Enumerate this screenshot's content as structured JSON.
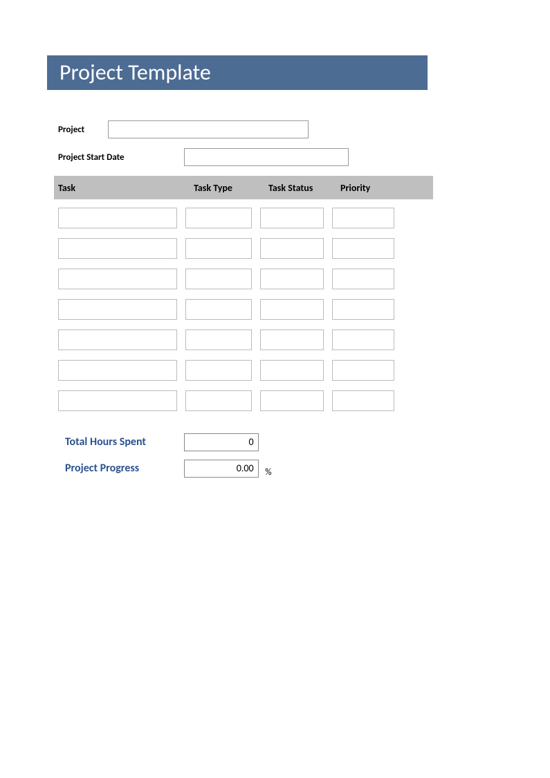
{
  "banner": {
    "title": "Project Template",
    "background_color": "#4d6c94",
    "text_color": "#ffffff",
    "font_size": 32
  },
  "fields": {
    "project": {
      "label": "Project",
      "value": ""
    },
    "start_date": {
      "label": "Project Start Date",
      "value": ""
    }
  },
  "table": {
    "header_background": "#bfbfbf",
    "columns": [
      {
        "key": "task",
        "label": "Task"
      },
      {
        "key": "type",
        "label": "Task Type"
      },
      {
        "key": "status",
        "label": "Task Status"
      },
      {
        "key": "priority",
        "label": "Priority"
      }
    ],
    "rows": [
      {
        "task": "",
        "type": "",
        "status": "",
        "priority": ""
      },
      {
        "task": "",
        "type": "",
        "status": "",
        "priority": ""
      },
      {
        "task": "",
        "type": "",
        "status": "",
        "priority": ""
      },
      {
        "task": "",
        "type": "",
        "status": "",
        "priority": ""
      },
      {
        "task": "",
        "type": "",
        "status": "",
        "priority": ""
      },
      {
        "task": "",
        "type": "",
        "status": "",
        "priority": ""
      },
      {
        "task": "",
        "type": "",
        "status": "",
        "priority": ""
      }
    ]
  },
  "summary": {
    "hours": {
      "label": "Total Hours Spent",
      "value": "0"
    },
    "progress": {
      "label": "Project Progress",
      "value": "0.00",
      "unit": "%"
    },
    "label_color": "#2a5190"
  }
}
